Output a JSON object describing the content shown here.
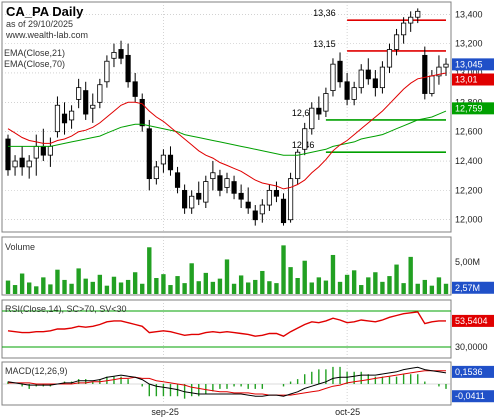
{
  "header": {
    "title": "CA_PA Daily",
    "subtitle": "as of 29/10/2025",
    "site": "www.wealth-lab.com",
    "ema21_label": "EMA(Close,21)",
    "ema70_label": "EMA(Close,70)"
  },
  "chart_data": [
    {
      "type": "candlestick",
      "panel": "price",
      "y_ticks": [
        "13,400",
        "13,200",
        "13,000",
        "12,800",
        "12,600",
        "12,400",
        "12,200",
        "12,000"
      ],
      "ylim": [
        11.93,
        13.47
      ],
      "x_ticks": [
        "sep-25",
        "oct-25"
      ],
      "ohlc": [
        [
          12.55,
          12.58,
          12.3,
          12.34
        ],
        [
          12.36,
          12.44,
          12.3,
          12.4
        ],
        [
          12.42,
          12.5,
          12.3,
          12.36
        ],
        [
          12.36,
          12.44,
          12.28,
          12.4
        ],
        [
          12.42,
          12.58,
          12.3,
          12.5
        ],
        [
          12.5,
          12.62,
          12.4,
          12.44
        ],
        [
          12.44,
          12.56,
          12.36,
          12.5
        ],
        [
          12.6,
          12.84,
          12.56,
          12.78
        ],
        [
          12.72,
          12.8,
          12.58,
          12.66
        ],
        [
          12.68,
          12.78,
          12.62,
          12.74
        ],
        [
          12.82,
          12.96,
          12.76,
          12.9
        ],
        [
          12.88,
          12.94,
          12.68,
          12.72
        ],
        [
          12.76,
          12.86,
          12.66,
          12.78
        ],
        [
          12.8,
          12.96,
          12.76,
          12.92
        ],
        [
          12.94,
          13.12,
          12.9,
          13.08
        ],
        [
          13.1,
          13.2,
          13.04,
          13.14
        ],
        [
          13.16,
          13.22,
          13.06,
          13.1
        ],
        [
          13.12,
          13.2,
          12.9,
          12.94
        ],
        [
          12.94,
          13.0,
          12.8,
          12.84
        ],
        [
          12.82,
          12.86,
          12.6,
          12.64
        ],
        [
          12.62,
          12.68,
          12.2,
          12.28
        ],
        [
          12.28,
          12.4,
          12.24,
          12.36
        ],
        [
          12.38,
          12.48,
          12.32,
          12.44
        ],
        [
          12.44,
          12.5,
          12.3,
          12.34
        ],
        [
          12.32,
          12.36,
          12.18,
          12.22
        ],
        [
          12.2,
          12.24,
          12.04,
          12.08
        ],
        [
          12.08,
          12.2,
          12.04,
          12.16
        ],
        [
          12.18,
          12.26,
          12.1,
          12.14
        ],
        [
          12.12,
          12.3,
          12.08,
          12.26
        ],
        [
          12.28,
          12.4,
          12.2,
          12.32
        ],
        [
          12.3,
          12.34,
          12.16,
          12.2
        ],
        [
          12.22,
          12.32,
          12.18,
          12.28
        ],
        [
          12.26,
          12.3,
          12.14,
          12.18
        ],
        [
          12.18,
          12.24,
          12.08,
          12.14
        ],
        [
          12.12,
          12.22,
          12.04,
          12.08
        ],
        [
          12.06,
          12.1,
          11.96,
          12.0
        ],
        [
          12.04,
          12.14,
          11.98,
          12.1
        ],
        [
          12.1,
          12.24,
          12.06,
          12.2
        ],
        [
          12.2,
          12.26,
          12.12,
          12.16
        ],
        [
          12.14,
          12.18,
          11.96,
          11.98
        ],
        [
          12.0,
          12.32,
          11.98,
          12.28
        ],
        [
          12.28,
          12.48,
          12.24,
          12.46
        ],
        [
          12.48,
          12.66,
          12.44,
          12.62
        ],
        [
          12.62,
          12.8,
          12.58,
          12.76
        ],
        [
          12.76,
          12.84,
          12.68,
          12.72
        ],
        [
          12.74,
          12.9,
          12.7,
          12.86
        ],
        [
          12.88,
          13.1,
          12.84,
          13.06
        ],
        [
          13.08,
          13.14,
          12.9,
          12.94
        ],
        [
          12.94,
          13.0,
          12.78,
          12.82
        ],
        [
          12.82,
          12.94,
          12.78,
          12.9
        ],
        [
          12.9,
          13.06,
          12.86,
          13.02
        ],
        [
          13.02,
          13.1,
          12.92,
          12.96
        ],
        [
          12.96,
          13.02,
          12.84,
          12.9
        ],
        [
          12.9,
          13.08,
          12.86,
          13.04
        ],
        [
          13.04,
          13.2,
          13.0,
          13.16
        ],
        [
          13.16,
          13.3,
          13.12,
          13.26
        ],
        [
          13.26,
          13.38,
          13.2,
          13.34
        ],
        [
          13.34,
          13.42,
          13.28,
          13.38
        ],
        [
          13.38,
          13.44,
          13.34,
          13.42
        ],
        [
          13.12,
          13.18,
          12.82,
          12.86
        ],
        [
          12.86,
          13.02,
          12.84,
          12.98
        ],
        [
          12.98,
          13.12,
          12.92,
          13.04
        ],
        [
          13.04,
          13.1,
          12.98,
          13.06
        ]
      ],
      "ema21": [
        12.62,
        12.59,
        12.56,
        12.54,
        12.53,
        12.52,
        12.52,
        12.54,
        12.55,
        12.57,
        12.6,
        12.61,
        12.63,
        12.66,
        12.7,
        12.74,
        12.78,
        12.8,
        12.8,
        12.79,
        12.74,
        12.7,
        12.67,
        12.63,
        12.59,
        12.55,
        12.51,
        12.47,
        12.44,
        12.42,
        12.39,
        12.37,
        12.35,
        12.33,
        12.3,
        12.27,
        12.25,
        12.24,
        12.23,
        12.21,
        12.22,
        12.24,
        12.27,
        12.32,
        12.36,
        12.41,
        12.47,
        12.51,
        12.54,
        12.58,
        12.62,
        12.66,
        12.7,
        12.74,
        12.79,
        12.84,
        12.89,
        12.93,
        12.96,
        12.97,
        12.98,
        12.99,
        13.0
      ],
      "ema70": [
        12.5,
        12.5,
        12.5,
        12.5,
        12.5,
        12.5,
        12.5,
        12.51,
        12.52,
        12.53,
        12.54,
        12.55,
        12.56,
        12.57,
        12.59,
        12.61,
        12.63,
        12.64,
        12.65,
        12.65,
        12.64,
        12.63,
        12.62,
        12.61,
        12.6,
        12.58,
        12.57,
        12.56,
        12.55,
        12.54,
        12.53,
        12.52,
        12.51,
        12.5,
        12.49,
        12.48,
        12.47,
        12.46,
        12.45,
        12.44,
        12.44,
        12.44,
        12.45,
        12.46,
        12.47,
        12.48,
        12.5,
        12.51,
        12.52,
        12.53,
        12.55,
        12.56,
        12.57,
        12.58,
        12.6,
        12.62,
        12.64,
        12.66,
        12.68,
        12.69,
        12.7,
        12.72,
        12.74
      ],
      "levels": [
        {
          "label": "13,36",
          "value": 13.36,
          "color": "#e00000"
        },
        {
          "label": "13,15",
          "value": 13.15,
          "color": "#e00000"
        },
        {
          "label": "12,68",
          "value": 12.68,
          "color": "#00a000"
        },
        {
          "label": "12,46",
          "value": 12.46,
          "color": "#00a000"
        }
      ],
      "last_tags": [
        {
          "label": "13,045",
          "value": 13.045,
          "bg": "#2050c8",
          "fg": "#ffffff"
        },
        {
          "label": "13,01",
          "value": 13.01,
          "bg": "#e00000",
          "fg": "#ffffff"
        },
        {
          "label": "12,759",
          "value": 12.759,
          "bg": "#00a000",
          "fg": "#ffffff"
        }
      ]
    },
    {
      "type": "bar",
      "panel": "volume",
      "title": "Volume",
      "y_ticks": [
        "5,00M"
      ],
      "ylim": [
        0,
        7.5
      ],
      "values": [
        2.1,
        1.4,
        3.2,
        1.8,
        1.2,
        2.6,
        1.5,
        3.8,
        2.2,
        1.6,
        4.0,
        2.4,
        1.9,
        3.0,
        1.3,
        2.7,
        1.8,
        2.2,
        3.4,
        1.6,
        7.3,
        2.5,
        3.1,
        1.4,
        2.8,
        1.7,
        4.8,
        2.0,
        3.3,
        1.9,
        2.4,
        5.4,
        1.6,
        2.9,
        1.8,
        2.2,
        3.6,
        2.0,
        1.7,
        7.6,
        4.2,
        2.5,
        5.2,
        1.8,
        2.6,
        2.1,
        6.1,
        1.9,
        3.0,
        3.7,
        1.4,
        2.6,
        3.4,
        1.9,
        2.8,
        4.6,
        1.7,
        5.8,
        1.6,
        2.2,
        1.3,
        2.6,
        1.6
      ],
      "last_tag": {
        "label": "2,57M",
        "bg": "#2050c8",
        "fg": "#ffffff"
      },
      "color": "#22a022"
    },
    {
      "type": "line",
      "panel": "rsi",
      "title": "RSI(Close,14), SC>70, SV<30",
      "y_ticks": [
        "30,0000"
      ],
      "ylim": [
        20,
        80
      ],
      "upper": 70,
      "lower": 30,
      "values": [
        48,
        47,
        46,
        46,
        47,
        47,
        48,
        50,
        50,
        51,
        53,
        52,
        53,
        55,
        58,
        59,
        59,
        57,
        55,
        53,
        46,
        47,
        48,
        47,
        45,
        43,
        44,
        44,
        46,
        47,
        46,
        47,
        46,
        45,
        44,
        42,
        43,
        45,
        45,
        42,
        47,
        51,
        55,
        58,
        57,
        59,
        62,
        60,
        57,
        58,
        60,
        59,
        58,
        60,
        63,
        65,
        67,
        68,
        69,
        56,
        58,
        59,
        59
      ],
      "last_tag": {
        "label": "53,5404",
        "bg": "#e00000",
        "fg": "#ffffff"
      },
      "color": "#e00000"
    },
    {
      "type": "line",
      "panel": "macd",
      "title": "MACD(12,26,9)",
      "y_ticks": [],
      "ylim": [
        -0.18,
        0.18
      ],
      "macd": [
        0.02,
        0.01,
        0.0,
        -0.01,
        -0.01,
        -0.01,
        -0.01,
        0.0,
        0.01,
        0.01,
        0.03,
        0.03,
        0.03,
        0.04,
        0.06,
        0.07,
        0.08,
        0.07,
        0.06,
        0.04,
        0.0,
        -0.02,
        -0.03,
        -0.04,
        -0.05,
        -0.07,
        -0.08,
        -0.09,
        -0.09,
        -0.09,
        -0.09,
        -0.09,
        -0.09,
        -0.09,
        -0.1,
        -0.11,
        -0.11,
        -0.1,
        -0.1,
        -0.11,
        -0.09,
        -0.07,
        -0.04,
        -0.02,
        0.0,
        0.02,
        0.05,
        0.06,
        0.06,
        0.07,
        0.08,
        0.08,
        0.08,
        0.09,
        0.1,
        0.11,
        0.13,
        0.14,
        0.15,
        0.13,
        0.12,
        0.11,
        0.1
      ],
      "signal": [
        0.01,
        0.01,
        0.01,
        0.01,
        0.0,
        0.0,
        0.0,
        0.0,
        0.0,
        0.0,
        0.01,
        0.01,
        0.02,
        0.02,
        0.03,
        0.04,
        0.05,
        0.05,
        0.06,
        0.05,
        0.05,
        0.03,
        0.02,
        0.01,
        0.0,
        -0.01,
        -0.03,
        -0.04,
        -0.05,
        -0.06,
        -0.07,
        -0.07,
        -0.08,
        -0.08,
        -0.08,
        -0.09,
        -0.09,
        -0.1,
        -0.1,
        -0.1,
        -0.1,
        -0.09,
        -0.08,
        -0.07,
        -0.06,
        -0.04,
        -0.02,
        -0.01,
        0.01,
        0.02,
        0.03,
        0.04,
        0.05,
        0.06,
        0.07,
        0.08,
        0.09,
        0.1,
        0.11,
        0.12,
        0.12,
        0.12,
        0.12
      ],
      "last_tags": [
        {
          "label": "0,1536",
          "bg": "#2050c8",
          "fg": "#ffffff"
        },
        {
          "label": "-0,0411",
          "bg": "#2050c8",
          "fg": "#ffffff"
        }
      ]
    }
  ],
  "colors": {
    "up": "#ffffff",
    "down": "#000000",
    "ema21": "#e00000",
    "ema70": "#00a000",
    "grid": "#b8b8b8",
    "panel_bg": "#ffffff"
  }
}
